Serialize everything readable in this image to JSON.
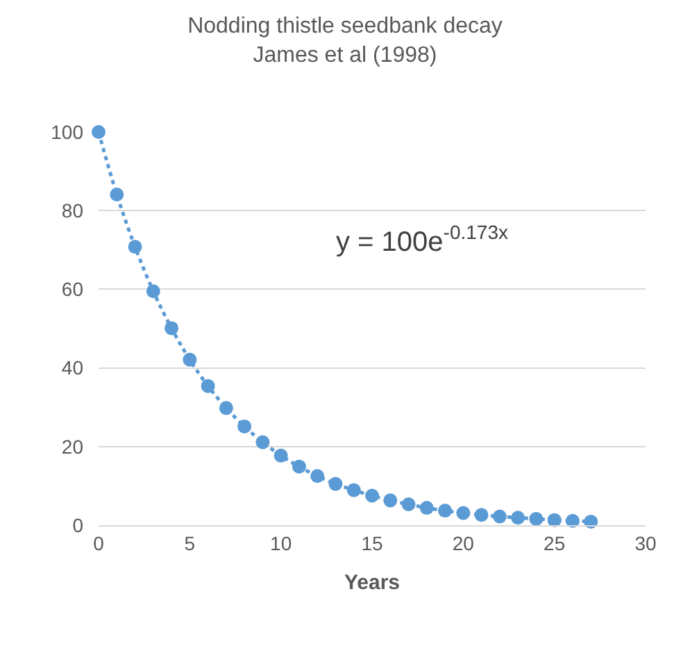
{
  "chart_data": {
    "type": "scatter",
    "title": "Nodding thistle seedbank decay\nJames et al (1998)",
    "xlabel": "Years",
    "x": [
      0,
      1,
      2,
      3,
      4,
      5,
      6,
      7,
      8,
      9,
      10,
      11,
      12,
      13,
      14,
      15,
      16,
      17,
      18,
      19,
      20,
      21,
      22,
      23,
      24,
      25,
      26,
      27
    ],
    "series": [
      {
        "color": "#5b9bd5",
        "values": [
          100,
          84.1,
          70.8,
          59.5,
          50.1,
          42.1,
          35.4,
          29.8,
          25.1,
          21.1,
          17.7,
          14.9,
          12.5,
          10.5,
          8.9,
          7.5,
          6.3,
          5.3,
          4.4,
          3.7,
          3.1,
          2.6,
          2.2,
          1.9,
          1.6,
          1.3,
          1.1,
          0.9
        ]
      },
      {
        "type": "line",
        "color": "#5b9bd5",
        "line_style": "dotted",
        "marker": "none",
        "x": [
          0,
          1,
          2,
          3,
          4,
          5,
          6,
          7,
          8,
          9,
          10,
          11,
          12,
          13,
          14,
          15,
          16,
          17,
          18,
          19,
          20,
          21,
          22,
          23,
          24,
          25,
          26,
          27
        ],
        "values": [
          100,
          84.1,
          70.8,
          59.5,
          50.1,
          42.1,
          35.4,
          29.8,
          25.1,
          21.1,
          17.7,
          14.9,
          12.5,
          10.5,
          8.9,
          7.5,
          6.3,
          5.3,
          4.4,
          3.7,
          3.1,
          2.6,
          2.2,
          1.9,
          1.6,
          1.3,
          1.1,
          0.9
        ]
      }
    ],
    "annotations": [
      "y = 100e$^{-0.173x}$"
    ],
    "xlim": [
      0,
      30
    ],
    "xticks": [
      0,
      5,
      10,
      15,
      20,
      25,
      30
    ],
    "ylim": [
      0,
      100
    ],
    "yticks": [
      0,
      20,
      40,
      60,
      80,
      100
    ],
    "grid": "y",
    "marker": "circle"
  }
}
